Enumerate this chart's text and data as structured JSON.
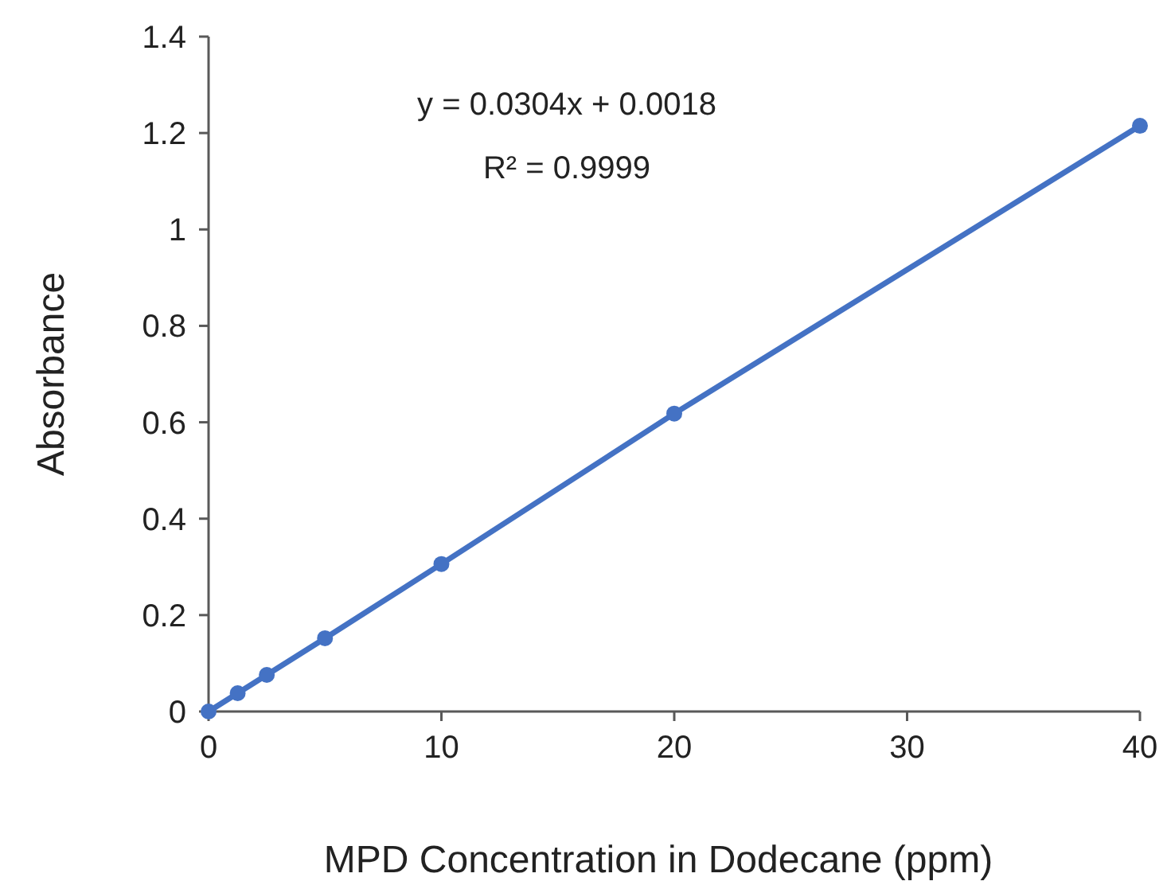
{
  "chart_data": {
    "type": "line",
    "xlabel": "MPD Concentration in Dodecane (ppm)",
    "ylabel": "Absorbance",
    "x": [
      0,
      1.25,
      2.5,
      5,
      10,
      20,
      40
    ],
    "series": [
      {
        "color": "#4472c4",
        "values": [
          0,
          0.038,
          0.076,
          0.152,
          0.306,
          0.618,
          1.215
        ]
      }
    ],
    "xlim": [
      0,
      40
    ],
    "xticks": [
      0,
      10,
      20,
      30,
      40
    ],
    "ylim": [
      0,
      1.4
    ],
    "yticks": [
      0,
      0.2,
      0.4,
      0.6,
      0.8,
      1,
      1.2,
      1.4
    ],
    "marker": "circle",
    "line_style": "solid",
    "annotations": [
      "y = 0.0304x + 0.0018",
      "R² = 0.9999"
    ]
  }
}
